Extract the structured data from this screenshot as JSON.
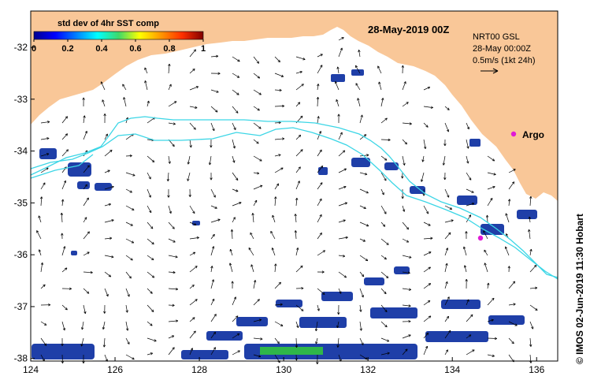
{
  "colorbar": {
    "title": "std dev of 4hr SST comp",
    "ticks": [
      "0",
      "0.2",
      "0.4",
      "0.6",
      "0.8",
      "1"
    ]
  },
  "map": {
    "date_title": "28-May-2019 00Z",
    "x_ticks": [
      "124",
      "126",
      "128",
      "130",
      "132",
      "134",
      "136"
    ],
    "y_ticks": [
      "-32",
      "-33",
      "-34",
      "-35",
      "-36",
      "-37",
      "-38"
    ],
    "x_range": [
      124,
      136.5
    ],
    "y_range": [
      -38.05,
      -31.3
    ]
  },
  "legend": {
    "line1": "NRT00 GSL",
    "line2": "28-May 00:00Z",
    "line3": "0.5m/s (1kt 24h)"
  },
  "argo": {
    "label": "Argo"
  },
  "credit": "© IMOS 02-Jun-2019 11:30 Hobart",
  "colors": {
    "land": "#f9c798",
    "ocean": "#ffffff",
    "track": "#3cd6e6",
    "argo_marker": "#e01ad6",
    "arrow": "#000000"
  }
}
